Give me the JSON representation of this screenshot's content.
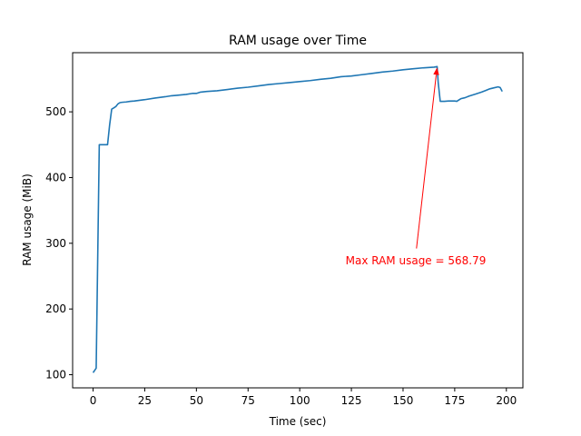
{
  "chart_data": {
    "type": "line",
    "title": "RAM usage over Time",
    "xlabel": "Time (sec)",
    "ylabel": "RAM usage (MiB)",
    "xlim": [
      -9.9,
      208
    ],
    "ylim": [
      80,
      590
    ],
    "xticks": [
      0,
      25,
      50,
      75,
      100,
      125,
      150,
      175,
      200
    ],
    "yticks": [
      100,
      200,
      300,
      400,
      500
    ],
    "grid": false,
    "legend": "none",
    "line_color": "#1f77b4",
    "annotation": {
      "text": "Max RAM usage = 568.79",
      "color": "#ff0000",
      "point": [
        166.5,
        568.79
      ],
      "text_anchor_point": [
        156.5,
        292
      ]
    },
    "series": [
      {
        "x": [
          0,
          1.5,
          3,
          4,
          5,
          6,
          7,
          8,
          9,
          10,
          11,
          12,
          13,
          14,
          16,
          18,
          20,
          25,
          30,
          35,
          38,
          40,
          45,
          48,
          50,
          52,
          55,
          60,
          65,
          70,
          75,
          80,
          85,
          90,
          95,
          100,
          105,
          110,
          115,
          120,
          125,
          130,
          135,
          140,
          145,
          150,
          155,
          160,
          165,
          166.5,
          167,
          168,
          170,
          172,
          175,
          176,
          177,
          178,
          180,
          182,
          185,
          188,
          190,
          192,
          194,
          196,
          197,
          198
        ],
        "y": [
          103,
          110,
          450,
          450,
          450,
          450,
          450,
          480,
          504,
          506,
          508,
          512,
          514,
          514.5,
          515,
          516,
          516.5,
          518.5,
          521,
          523,
          524.5,
          525,
          526.5,
          528,
          528,
          530,
          531,
          532,
          534,
          536,
          537.5,
          539.5,
          541.5,
          543,
          544.5,
          546,
          547.5,
          549.5,
          551,
          553.5,
          554.5,
          556.5,
          558.5,
          560.5,
          562,
          564,
          565.5,
          567,
          568,
          568.79,
          545,
          516,
          516,
          516.5,
          516.5,
          516,
          518,
          520,
          521.5,
          524,
          527,
          530,
          532.5,
          535,
          536.5,
          538,
          537,
          531
        ]
      }
    ]
  }
}
